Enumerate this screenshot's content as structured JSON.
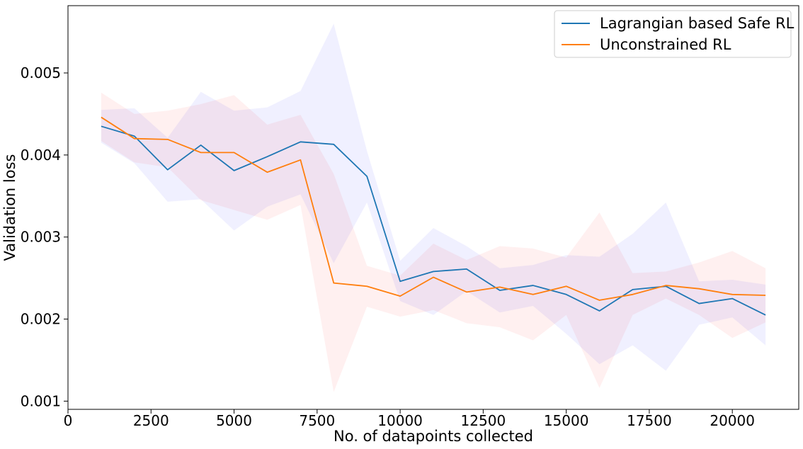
{
  "chart_data": {
    "type": "line",
    "xlabel": "No. of datapoints collected",
    "ylabel": "Validation loss",
    "xlim": [
      0,
      22000
    ],
    "ylim": [
      0.0009,
      0.00582
    ],
    "xticks": [
      0,
      2500,
      5000,
      7500,
      10000,
      12500,
      15000,
      17500,
      20000
    ],
    "xtick_labels": [
      "0",
      "2500",
      "5000",
      "7500",
      "10000",
      "12500",
      "15000",
      "17500",
      "20000"
    ],
    "yticks": [
      0.001,
      0.002,
      0.003,
      0.004,
      0.005
    ],
    "ytick_labels": [
      "0.001",
      "0.002",
      "0.003",
      "0.004",
      "0.005"
    ],
    "grid": false,
    "legend_position": "top-right",
    "x": [
      1000,
      2000,
      3000,
      4000,
      5000,
      6000,
      7000,
      8000,
      9000,
      10000,
      11000,
      12000,
      13000,
      14000,
      15000,
      16000,
      17000,
      18000,
      19000,
      20000,
      21000
    ],
    "series": [
      {
        "name": "Lagrangian based Safe RL",
        "color": "#1f77b4",
        "band_color": "#0000ff",
        "values": [
          0.00435,
          0.00423,
          0.00382,
          0.00412,
          0.00381,
          0.00398,
          0.00416,
          0.00413,
          0.00374,
          0.00246,
          0.00258,
          0.00261,
          0.00235,
          0.00241,
          0.0023,
          0.0021,
          0.00236,
          0.0024,
          0.00219,
          0.00225,
          0.00205
        ],
        "lower": [
          0.00415,
          0.0039,
          0.00343,
          0.00346,
          0.00308,
          0.00337,
          0.00352,
          0.00268,
          0.00342,
          0.00222,
          0.00205,
          0.00234,
          0.00208,
          0.00216,
          0.00182,
          0.00145,
          0.00168,
          0.00137,
          0.00193,
          0.00202,
          0.00168
        ],
        "upper": [
          0.00455,
          0.00457,
          0.00421,
          0.00477,
          0.00454,
          0.00458,
          0.00478,
          0.0056,
          0.00405,
          0.00271,
          0.00311,
          0.00289,
          0.00262,
          0.00266,
          0.00278,
          0.00276,
          0.00304,
          0.00342,
          0.00246,
          0.00248,
          0.00242
        ]
      },
      {
        "name": "Unconstrained RL",
        "color": "#ff7f0e",
        "band_color": "#ff0000",
        "values": [
          0.00446,
          0.0042,
          0.00419,
          0.00403,
          0.00403,
          0.00379,
          0.00394,
          0.00244,
          0.0024,
          0.00228,
          0.00251,
          0.00233,
          0.00239,
          0.0023,
          0.0024,
          0.00223,
          0.0023,
          0.00241,
          0.00237,
          0.0023,
          0.00229
        ],
        "lower": [
          0.00417,
          0.00391,
          0.00385,
          0.00345,
          0.00333,
          0.00321,
          0.00339,
          0.00111,
          0.00215,
          0.00203,
          0.00211,
          0.00195,
          0.0019,
          0.00174,
          0.00205,
          0.00116,
          0.00205,
          0.00225,
          0.00205,
          0.00177,
          0.00196
        ],
        "upper": [
          0.00476,
          0.0045,
          0.00454,
          0.00462,
          0.00473,
          0.00437,
          0.00449,
          0.00377,
          0.00265,
          0.00253,
          0.00292,
          0.00272,
          0.00289,
          0.00286,
          0.00275,
          0.0033,
          0.00256,
          0.00258,
          0.00269,
          0.00283,
          0.00262
        ]
      }
    ]
  }
}
